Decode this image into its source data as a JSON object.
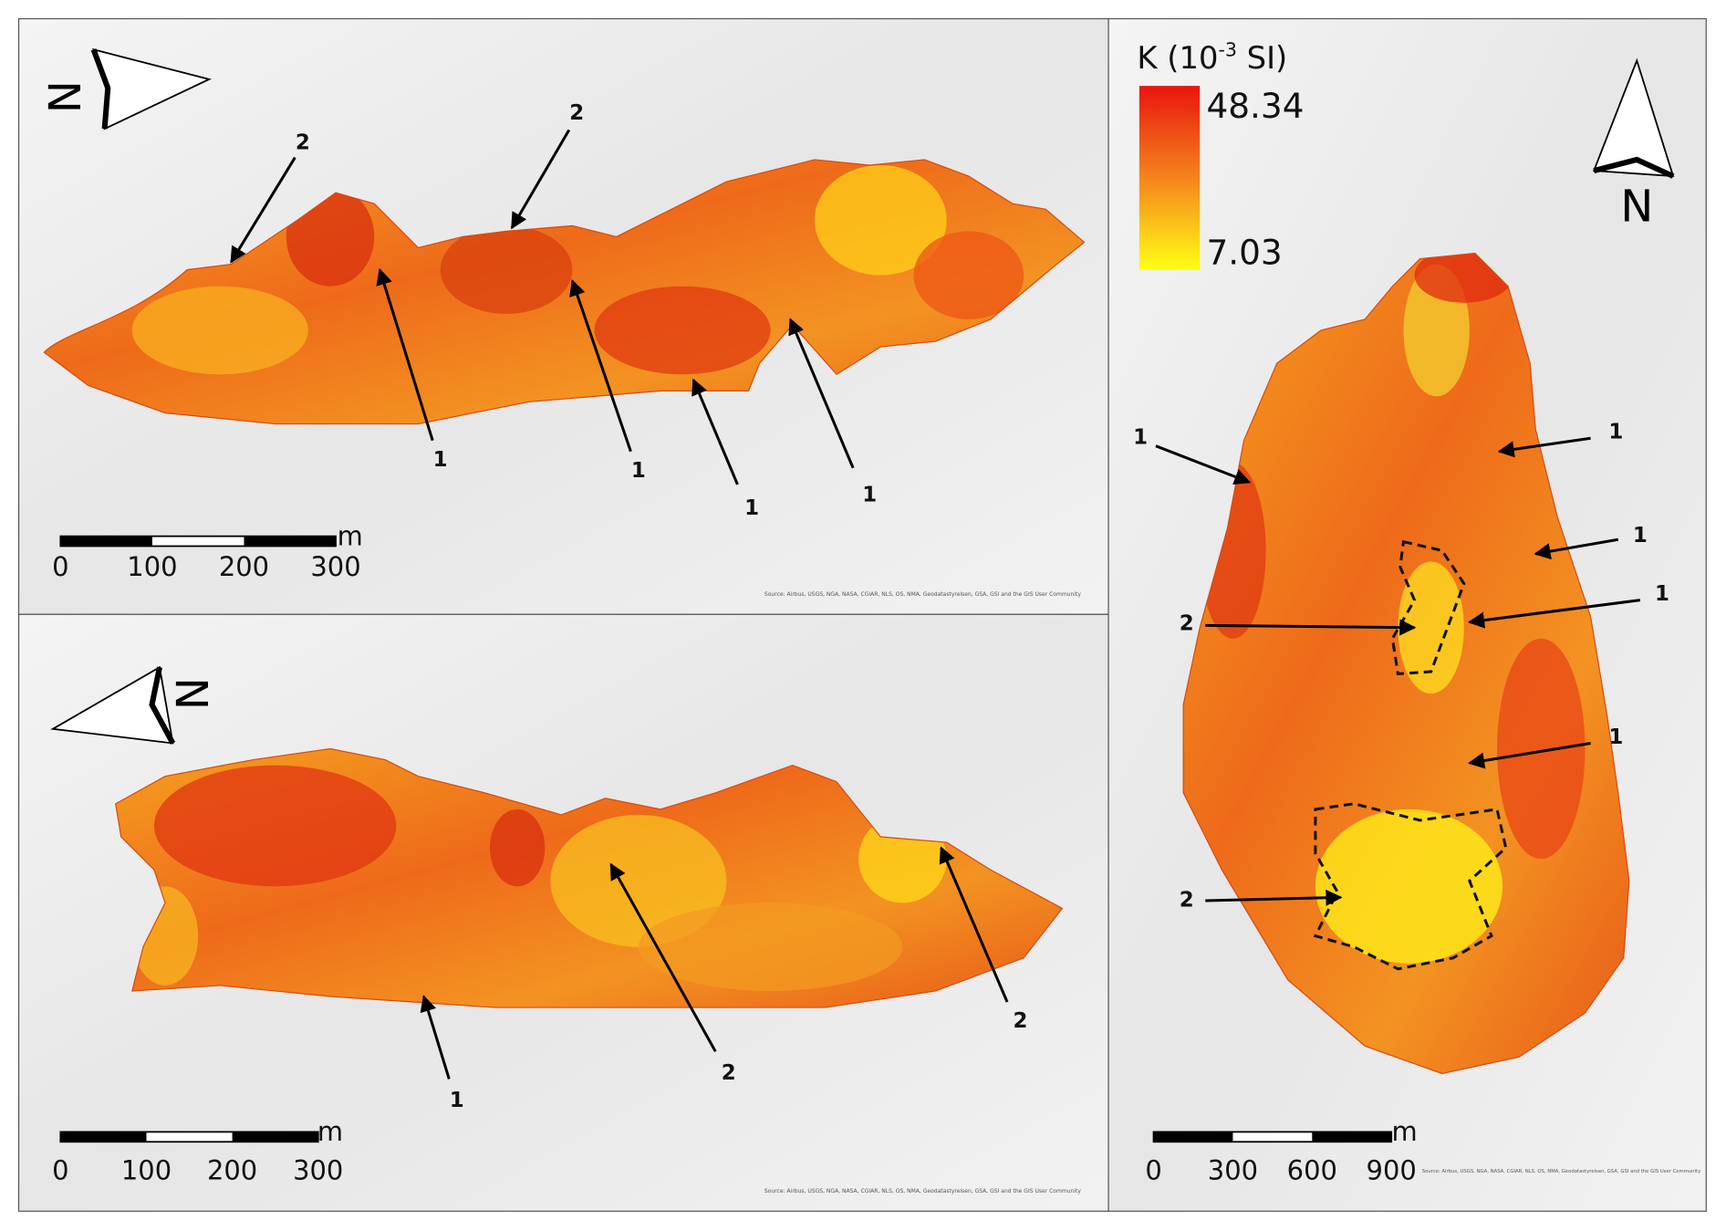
{
  "panels": [
    {
      "north": "N",
      "labels": [
        "2",
        "2",
        "1",
        "1",
        "1",
        "1"
      ],
      "scale": {
        "ticks": [
          "0",
          "100",
          "200",
          "300"
        ],
        "unit": "m"
      },
      "source": "Source: Airbus, USGS, NGA, NASA, CGIAR, NLS, OS, NMA, Geodatastyrelsen, GSA, GSI and the GIS User Community"
    },
    {
      "north": "N",
      "labels": [
        "1",
        "2",
        "2"
      ],
      "scale": {
        "ticks": [
          "0",
          "100",
          "200",
          "300"
        ],
        "unit": "m"
      },
      "source": "Source: Airbus, USGS, NGA, NASA, CGIAR, NLS, OS, NMA, Geodatastyrelsen, GSA, GSI and the GIS User Community"
    },
    {
      "north": "N",
      "labels": [
        "1",
        "1",
        "1",
        "1",
        "1",
        "2",
        "2"
      ],
      "scale": {
        "ticks": [
          "0",
          "300",
          "600",
          "900"
        ],
        "unit": "m"
      },
      "source": "Source: Airbus, USGS, NGA, NASA, CGIAR, NLS, OS, NMA, Geodatastyrelsen, GSA, GSI and the GIS User Community",
      "legend": {
        "title": "K (10",
        "title_exponent": "-3",
        "title_unit": " SI)",
        "max": "48.34",
        "min": "7.03"
      }
    }
  ]
}
